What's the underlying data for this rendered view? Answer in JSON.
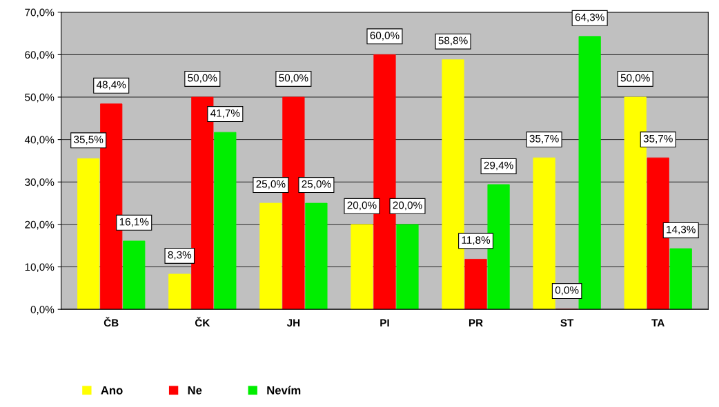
{
  "chart_data": {
    "type": "bar",
    "categories": [
      "ČB",
      "ČK",
      "JH",
      "PI",
      "PR",
      "ST",
      "TA"
    ],
    "series": [
      {
        "name": "Ano",
        "color": "#ffff00",
        "values": [
          35.5,
          8.3,
          25.0,
          20.0,
          58.8,
          35.7,
          50.0
        ],
        "value_labels": [
          "35,5%",
          "8,3%",
          "25,0%",
          "20,0%",
          "58,8%",
          "35,7%",
          "50,0%"
        ]
      },
      {
        "name": "Ne",
        "color": "#ff0000",
        "values": [
          48.4,
          50.0,
          50.0,
          60.0,
          11.8,
          0.0,
          35.7
        ],
        "value_labels": [
          "48,4%",
          "50,0%",
          "50,0%",
          "60,0%",
          "11,8%",
          "0,0%",
          "35,7%"
        ]
      },
      {
        "name": "Nevím",
        "color": "#00ee00",
        "values": [
          16.1,
          41.7,
          25.0,
          20.0,
          29.4,
          64.3,
          14.3
        ],
        "value_labels": [
          "16,1%",
          "41,7%",
          "25,0%",
          "20,0%",
          "29,4%",
          "64,3%",
          "14,3%"
        ]
      }
    ],
    "ylim": [
      0,
      70
    ],
    "yticks": [
      {
        "value": 0,
        "label": "0,0%"
      },
      {
        "value": 10,
        "label": "10,0%"
      },
      {
        "value": 20,
        "label": "20,0%"
      },
      {
        "value": 30,
        "label": "30,0%"
      },
      {
        "value": 40,
        "label": "40,0%"
      },
      {
        "value": 50,
        "label": "50,0%"
      },
      {
        "value": 60,
        "label": "60,0%"
      },
      {
        "value": 70,
        "label": "70,0%"
      }
    ],
    "grid": "y",
    "legend": "bottom"
  }
}
